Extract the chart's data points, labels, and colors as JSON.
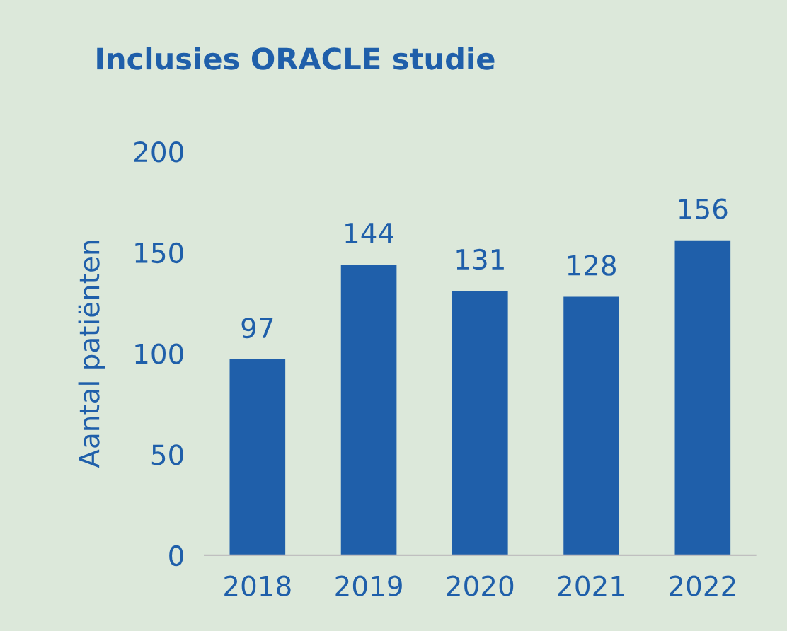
{
  "chart_data": {
    "type": "bar",
    "title": "Inclusies ORACLE studie",
    "ylabel": "Aantal patiënten",
    "categories": [
      "2018",
      "2019",
      "2020",
      "2021",
      "2022"
    ],
    "values": [
      97,
      144,
      131,
      128,
      156
    ],
    "color": "#1f5faa",
    "ylim": [
      0,
      200
    ],
    "yticks": [
      0,
      50,
      100,
      150,
      200
    ],
    "grid": false,
    "data_labels": true
  }
}
